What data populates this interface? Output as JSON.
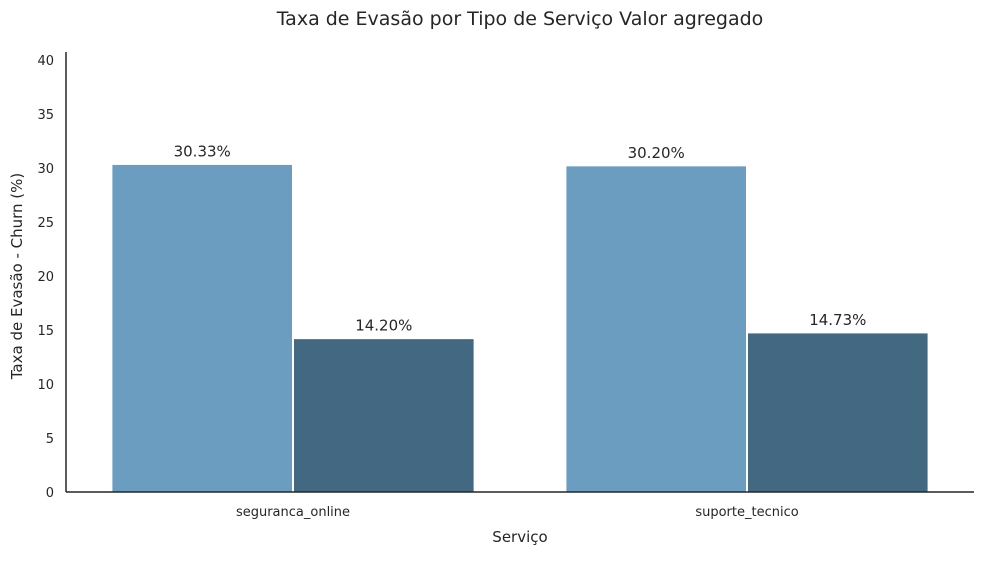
{
  "chart_data": {
    "type": "bar",
    "title": "Taxa de Evasão por Tipo de Serviço Valor agregado",
    "xlabel": "Serviço",
    "ylabel": "Taxa de Evasão - Churn (%)",
    "ylim": [
      0,
      40
    ],
    "yticks": [
      "0",
      "5",
      "10",
      "15",
      "20",
      "25",
      "30",
      "35",
      "40"
    ],
    "categories": [
      "seguranca_online",
      "suporte_tecnico"
    ],
    "series": [
      {
        "values": [
          30.33,
          30.2
        ],
        "labels": [
          "30.33%",
          "30.20%"
        ],
        "color": "#6b9dc0"
      },
      {
        "values": [
          14.2,
          14.73
        ],
        "labels": [
          "14.20%",
          "14.73%"
        ],
        "color": "#426882"
      }
    ],
    "grid": false,
    "legend": "none"
  }
}
